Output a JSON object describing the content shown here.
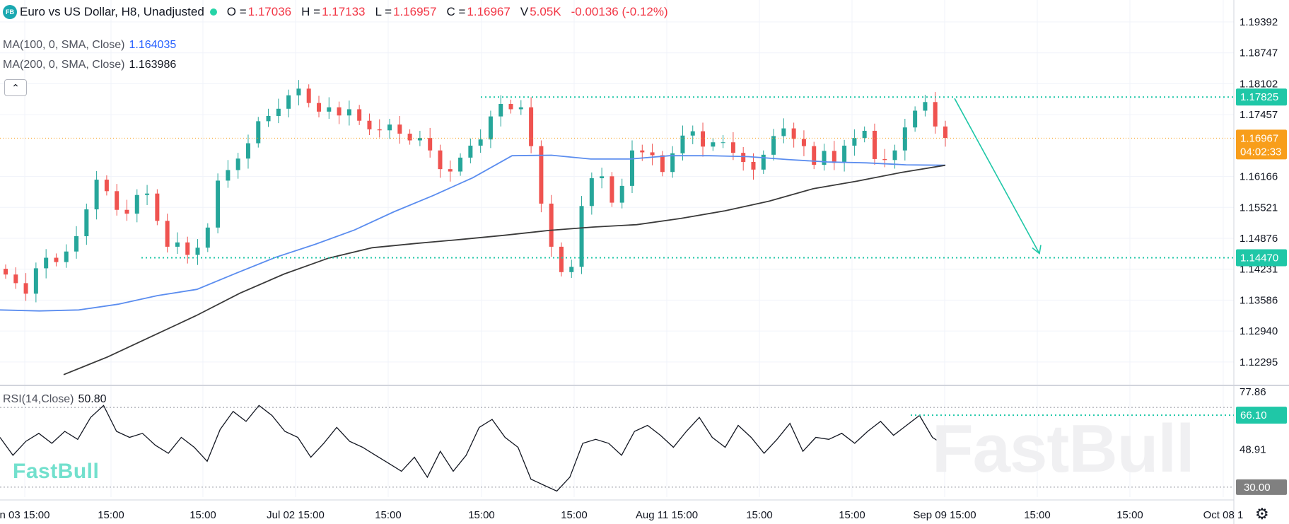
{
  "header": {
    "logo": "FB",
    "title": "Euro vs US Dollar, H8, Unadjusted",
    "ohlc": [
      {
        "key": "O =",
        "value": "1.17036"
      },
      {
        "key": "H =",
        "value": "1.17133"
      },
      {
        "key": "L =",
        "value": "1.16957"
      },
      {
        "key": "C =",
        "value": "1.16967"
      },
      {
        "key": "V",
        "value": "5.05K"
      }
    ],
    "change": "-0.00136 (-0.12%)"
  },
  "indicators": {
    "ma100": {
      "label": "MA(100, 0, SMA, Close)",
      "value": "1.164035",
      "color": "#5b8def"
    },
    "ma200": {
      "label": "MA(200, 0, SMA, Close)",
      "value": "1.163986",
      "color": "#3a3a3a"
    },
    "rsi": {
      "label": "RSI(14,Close)",
      "value": "50.80"
    }
  },
  "watermark": "FastBull",
  "chart_data": {
    "type": "candlestick",
    "symbol": "EUR/USD",
    "timeframe": "H8",
    "price_axis": {
      "range": [
        1.1185,
        1.1985
      ],
      "ticks": [
        "1.19392",
        "1.18747",
        "1.18102",
        "1.17457",
        "1.16166",
        "1.15521",
        "1.14876",
        "1.14231",
        "1.13586",
        "1.12940",
        "1.12295"
      ]
    },
    "rsi_axis": {
      "range": [
        25,
        80
      ],
      "ticks": [
        "77.86",
        "48.91",
        "30.00"
      ]
    },
    "time_axis": [
      "n 03 15:00",
      "15:00",
      "15:00",
      "Jul 02 15:00",
      "15:00",
      "15:00",
      "15:00",
      "Aug 11 15:00",
      "15:00",
      "15:00",
      "Sep 09 15:00",
      "15:00",
      "15:00",
      "Oct 08 1"
    ],
    "series": [
      {
        "name": "Price close (approx.)",
        "values": [
          1.1412,
          1.1394,
          1.1372,
          1.1425,
          1.1447,
          1.1438,
          1.146,
          1.1492,
          1.1548,
          1.161,
          1.1586,
          1.1547,
          1.1539,
          1.1578,
          1.1581,
          1.1524,
          1.147,
          1.1479,
          1.1453,
          1.1468,
          1.151,
          1.1608,
          1.163,
          1.1654,
          1.1686,
          1.1732,
          1.1743,
          1.1758,
          1.1786,
          1.18,
          1.177,
          1.1752,
          1.1761,
          1.1744,
          1.1757,
          1.1733,
          1.1715,
          1.1713,
          1.1725,
          1.1706,
          1.1692,
          1.1697,
          1.1671,
          1.1632,
          1.1627,
          1.1656,
          1.1681,
          1.1694,
          1.1742,
          1.1768,
          1.1757,
          1.1761,
          1.168,
          1.156,
          1.147,
          1.1417,
          1.1428,
          1.1555,
          1.1613,
          1.1617,
          1.1562,
          1.1597,
          1.1671,
          1.1667,
          1.1661,
          1.1626,
          1.1665,
          1.1702,
          1.1711,
          1.1679,
          1.1688,
          1.1688,
          1.1666,
          1.1647,
          1.1631,
          1.1662,
          1.1701,
          1.1717,
          1.1695,
          1.168,
          1.1641,
          1.167,
          1.1645,
          1.1681,
          1.1697,
          1.1712,
          1.1653,
          1.1651,
          1.1671,
          1.1719,
          1.1754,
          1.1772,
          1.1721,
          1.1697
        ]
      },
      {
        "name": "MA(100)",
        "values": [
          1.1338,
          1.1336,
          1.1338,
          1.135,
          1.1368,
          1.1381,
          1.1415,
          1.1448,
          1.1475,
          1.1505,
          1.1543,
          1.1577,
          1.1614,
          1.166,
          1.1661,
          1.1653,
          1.1653,
          1.166,
          1.166,
          1.1658,
          1.1652,
          1.1647,
          1.1645,
          1.1641,
          1.164
        ]
      },
      {
        "name": "MA(200)",
        "values": [
          1.1203,
          1.124,
          1.1283,
          1.1326,
          1.1373,
          1.1413,
          1.1446,
          1.1468,
          1.1477,
          1.1485,
          1.1494,
          1.1504,
          1.1511,
          1.1516,
          1.1529,
          1.1545,
          1.1565,
          1.1591,
          1.1607,
          1.1625,
          1.164
        ]
      },
      {
        "name": "RSI(14)",
        "values": [
          55,
          46,
          53,
          57,
          52,
          58,
          54,
          65,
          71,
          58,
          55,
          57,
          51,
          47,
          55,
          50,
          43,
          59,
          68,
          63,
          71,
          66,
          58,
          55,
          45,
          52,
          60,
          53,
          50,
          46,
          42,
          38,
          45,
          35,
          48,
          38,
          46,
          60,
          64,
          55,
          50,
          34,
          31,
          28,
          35,
          52,
          54,
          52,
          46,
          58,
          61,
          56,
          50,
          58,
          65,
          55,
          50,
          61,
          55,
          47,
          54,
          62,
          48,
          55,
          54,
          57,
          52,
          58,
          63,
          56,
          61,
          66,
          55,
          50.8
        ]
      }
    ],
    "levels": [
      {
        "name": "resistance",
        "value": "1.17825",
        "color": "#1fc7a7"
      },
      {
        "name": "target",
        "value": "1.14470",
        "color": "#1fc7a7"
      },
      {
        "name": "current",
        "value": "1.16967",
        "countdown": "04:02:33",
        "color": "#f89e1b"
      },
      {
        "name": "rsi-level",
        "value": "66.10",
        "color": "#1fc7a7"
      },
      {
        "name": "rsi-oversold",
        "value": "30.00",
        "color": "#808080"
      }
    ],
    "projection": {
      "from": 1.17825,
      "to": 1.1447,
      "direction": "down"
    }
  }
}
